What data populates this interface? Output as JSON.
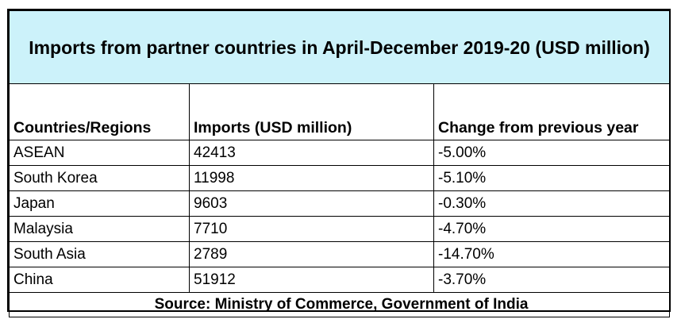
{
  "chart_data": {
    "type": "table",
    "title": "Imports from partner countries in April-December 2019-20 (USD million)",
    "columns": [
      "Countries/Regions",
      "Imports (USD million)",
      "Change from previous year"
    ],
    "rows": [
      [
        "ASEAN",
        "42413",
        "-5.00%"
      ],
      [
        "South Korea",
        "11998",
        "-5.10%"
      ],
      [
        "Japan",
        "9603",
        "-0.30%"
      ],
      [
        "Malaysia",
        "7710",
        "-4.70%"
      ],
      [
        "South Asia",
        "2789",
        "-14.70%"
      ],
      [
        "China",
        "51912",
        "-3.70%"
      ]
    ],
    "source": "Source: Ministry of Commerce, Government of India"
  },
  "colors": {
    "title_background": "#ccf2fa",
    "border": "#000000",
    "text": "#000000"
  }
}
